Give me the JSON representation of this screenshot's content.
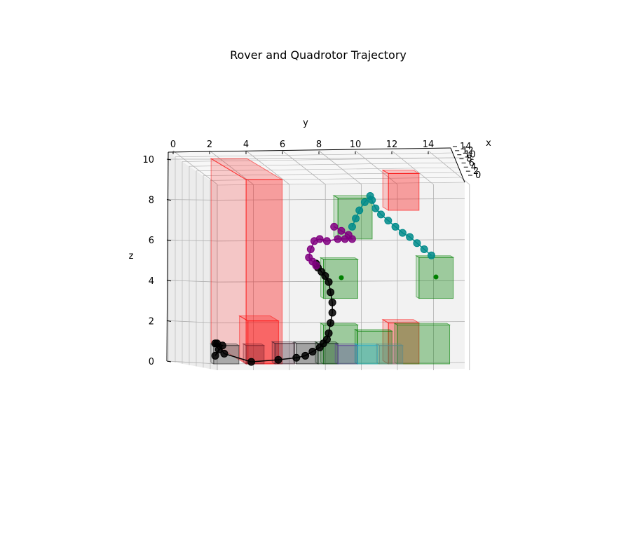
{
  "chart_data": {
    "type": "scatter3d",
    "title": "Rover and Quadrotor Trajectory",
    "xlabel": "x",
    "ylabel": "y",
    "zlabel": "z",
    "xlim": [
      0,
      14
    ],
    "ylim": [
      0,
      15
    ],
    "zlim": [
      0,
      10
    ],
    "grid": true,
    "x_ticks": [
      "0",
      "2",
      "4",
      "6",
      "8",
      "10",
      "12",
      "14"
    ],
    "y_ticks": [
      "0",
      "2",
      "4",
      "6",
      "8",
      "10",
      "12",
      "14"
    ],
    "z_ticks": [
      "0",
      "2",
      "4",
      "6",
      "8",
      "10"
    ],
    "colors": {
      "obstacle": "#ff0000",
      "goal_region": "#008000",
      "rover": "#000000",
      "quadrotor_path_1": "#800080",
      "quadrotor_path_2": "#008b8b",
      "grid_line": "#b0b0b0",
      "pane": "#f2f2f2"
    },
    "obstacles": [
      {
        "y": [
          4,
          7.5
        ],
        "z": [
          0,
          10
        ]
      },
      {
        "y": [
          4.5,
          6
        ],
        "z": [
          0,
          2
        ]
      },
      {
        "y": [
          12,
          14
        ],
        "z": [
          7.5,
          9.5
        ]
      },
      {
        "y": [
          12,
          14
        ],
        "z": [
          0,
          2
        ]
      }
    ],
    "goal_regions": [
      {
        "y": [
          9,
          11
        ],
        "z": [
          6,
          8
        ]
      },
      {
        "y": [
          9,
          11
        ],
        "z": [
          3.5,
          5.5
        ]
      },
      {
        "y": [
          14,
          16
        ],
        "z": [
          3.5,
          5.5
        ]
      },
      {
        "y": [
          9,
          11
        ],
        "z": [
          0,
          2
        ]
      },
      {
        "y": [
          11,
          13
        ],
        "z": [
          0,
          2
        ]
      },
      {
        "y": [
          14,
          16
        ],
        "z": [
          0,
          2
        ]
      }
    ],
    "series": [
      {
        "y": [
          3.0,
          3.2,
          3.0,
          3.4,
          3.1,
          3.5,
          5.0,
          6.5,
          7.5,
          8.0,
          8.4,
          8.8,
          9.0,
          9.2,
          9.3,
          9.4,
          9.5,
          9.5,
          9.4,
          9.3,
          9.1,
          8.9,
          8.7,
          8.6
        ],
        "z": [
          1.0,
          0.7,
          0.4,
          0.9,
          1.0,
          0.5,
          0.1,
          0.2,
          0.3,
          0.4,
          0.6,
          0.8,
          1.0,
          1.2,
          1.5,
          2.0,
          2.5,
          3.0,
          3.5,
          4.0,
          4.3,
          4.5,
          4.7,
          4.9
        ]
      },
      {
        "y": [
          8.6,
          8.4,
          8.2,
          8.3,
          8.5,
          8.8,
          9.2,
          9.8,
          10.2,
          10.6,
          10.4,
          10.0,
          9.6
        ],
        "z": [
          4.8,
          5.0,
          5.2,
          5.6,
          6.0,
          6.1,
          6.0,
          6.1,
          6.1,
          6.1,
          6.3,
          6.5,
          6.7
        ]
      },
      {
        "y": [
          10.6,
          10.8,
          11.0,
          11.3,
          11.6,
          11.7,
          11.9,
          12.2,
          12.6,
          13.0,
          13.4,
          13.8,
          14.2,
          14.6,
          15.0
        ],
        "z": [
          6.7,
          7.1,
          7.5,
          7.9,
          8.2,
          8.0,
          7.6,
          7.3,
          7.0,
          6.7,
          6.4,
          6.2,
          5.9,
          5.6,
          5.3
        ]
      }
    ]
  },
  "figure": {
    "title": "Rover and Quadrotor Trajectory"
  }
}
